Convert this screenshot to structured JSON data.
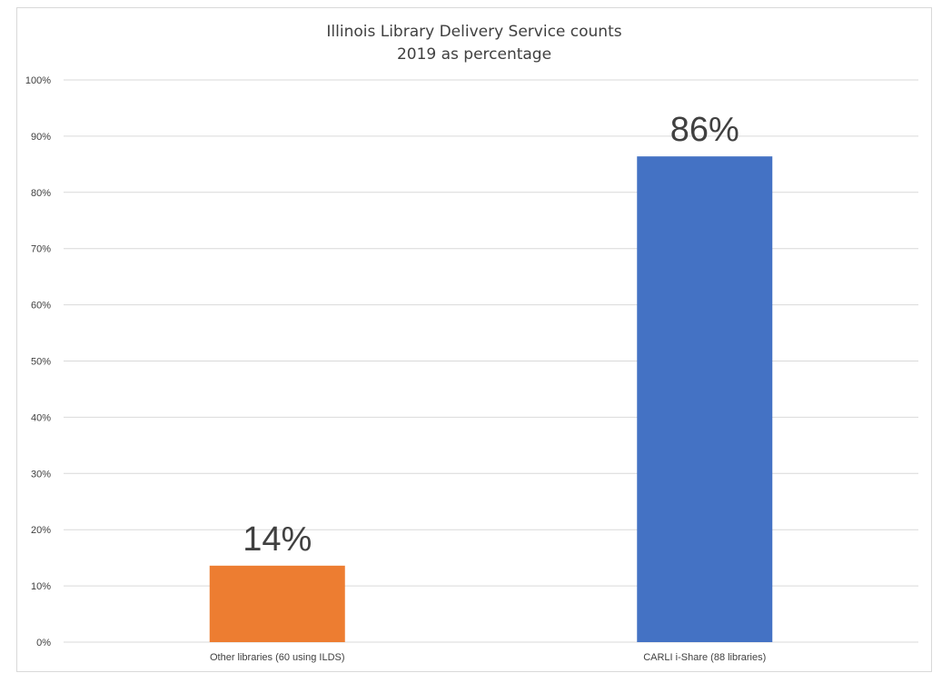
{
  "chart_data": {
    "type": "bar",
    "title": "Illinois Library Delivery Service counts",
    "subtitle": "2019 as percentage",
    "categories": [
      "Other libraries (60 using ILDS)",
      "CARLI i-Share (88 libraries)"
    ],
    "values": [
      13.6,
      86.4
    ],
    "data_labels": [
      "14%",
      "86%"
    ],
    "colors": [
      "#ED7D31",
      "#4472C4"
    ],
    "ylim": [
      0,
      100
    ],
    "yticks": [
      0,
      10,
      20,
      30,
      40,
      50,
      60,
      70,
      80,
      90,
      100
    ],
    "ytick_labels": [
      "0%",
      "10%",
      "20%",
      "30%",
      "40%",
      "50%",
      "60%",
      "70%",
      "80%",
      "90%",
      "100%"
    ],
    "xlabel": "",
    "ylabel": "",
    "grid": true,
    "legend": "none"
  }
}
